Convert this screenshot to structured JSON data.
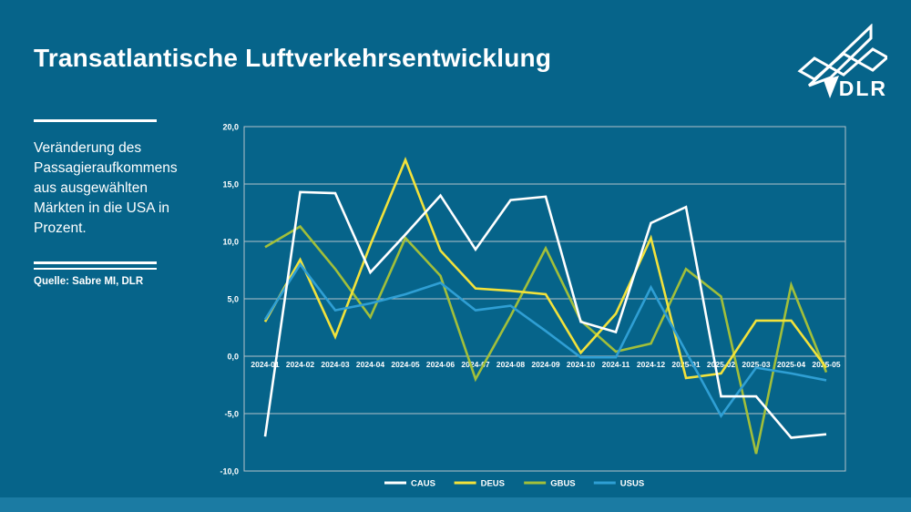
{
  "slide": {
    "title": "Transatlantische Luftverkehrsentwicklung",
    "subtitle": "Veränderung des Passagieraufkommens aus ausgewählten Märkten in die USA in Prozent.",
    "source": "Quelle: Sabre MI, DLR",
    "logo_text": "DLR"
  },
  "colors": {
    "background": "#06648A",
    "footer_bar": "#1B7BA3",
    "grid": "#B3C2CA",
    "text": "#FFFFFF"
  },
  "chart_data": {
    "type": "line",
    "title": "",
    "xlabel": "",
    "ylabel": "",
    "x": [
      "2024-01",
      "2024-02",
      "2024-03",
      "2024-04",
      "2024-05",
      "2024-06",
      "2024-07",
      "2024-08",
      "2024-09",
      "2024-10",
      "2024-11",
      "2024-12",
      "2025-01",
      "2025-02",
      "2025-03",
      "2025-04",
      "2025-05"
    ],
    "series": [
      {
        "name": "CAUS",
        "color": "#FFFFFF",
        "values": [
          -7.0,
          14.3,
          14.2,
          7.3,
          10.6,
          14.0,
          9.3,
          13.6,
          13.9,
          3.0,
          2.1,
          11.6,
          13.0,
          -3.5,
          -3.5,
          -7.1,
          -6.8
        ]
      },
      {
        "name": "DEUS",
        "color": "#F2E23B",
        "values": [
          3.0,
          8.4,
          1.7,
          9.7,
          17.1,
          9.2,
          5.9,
          5.7,
          5.4,
          0.3,
          3.7,
          10.3,
          -1.9,
          -1.5,
          3.1,
          3.1,
          -1.0
        ]
      },
      {
        "name": "GBUS",
        "color": "#A2BF3A",
        "values": [
          9.5,
          11.3,
          7.6,
          3.4,
          10.3,
          7.0,
          -2.0,
          3.5,
          9.4,
          3.1,
          0.4,
          1.1,
          7.6,
          5.2,
          -8.5,
          6.2,
          -1.4
        ]
      },
      {
        "name": "USUS",
        "color": "#2F9FD4",
        "values": [
          3.2,
          8.0,
          4.0,
          4.6,
          5.4,
          6.4,
          4.0,
          4.4,
          2.2,
          -0.1,
          -0.1,
          6.0,
          0.4,
          -5.2,
          -1.0,
          -1.5,
          -2.1
        ]
      }
    ],
    "ylim": [
      -10,
      20
    ],
    "ytick_step": 5,
    "decimal_separator": ",",
    "grid": true,
    "x_labels_at_zero_line": true,
    "legend_position": "bottom"
  }
}
